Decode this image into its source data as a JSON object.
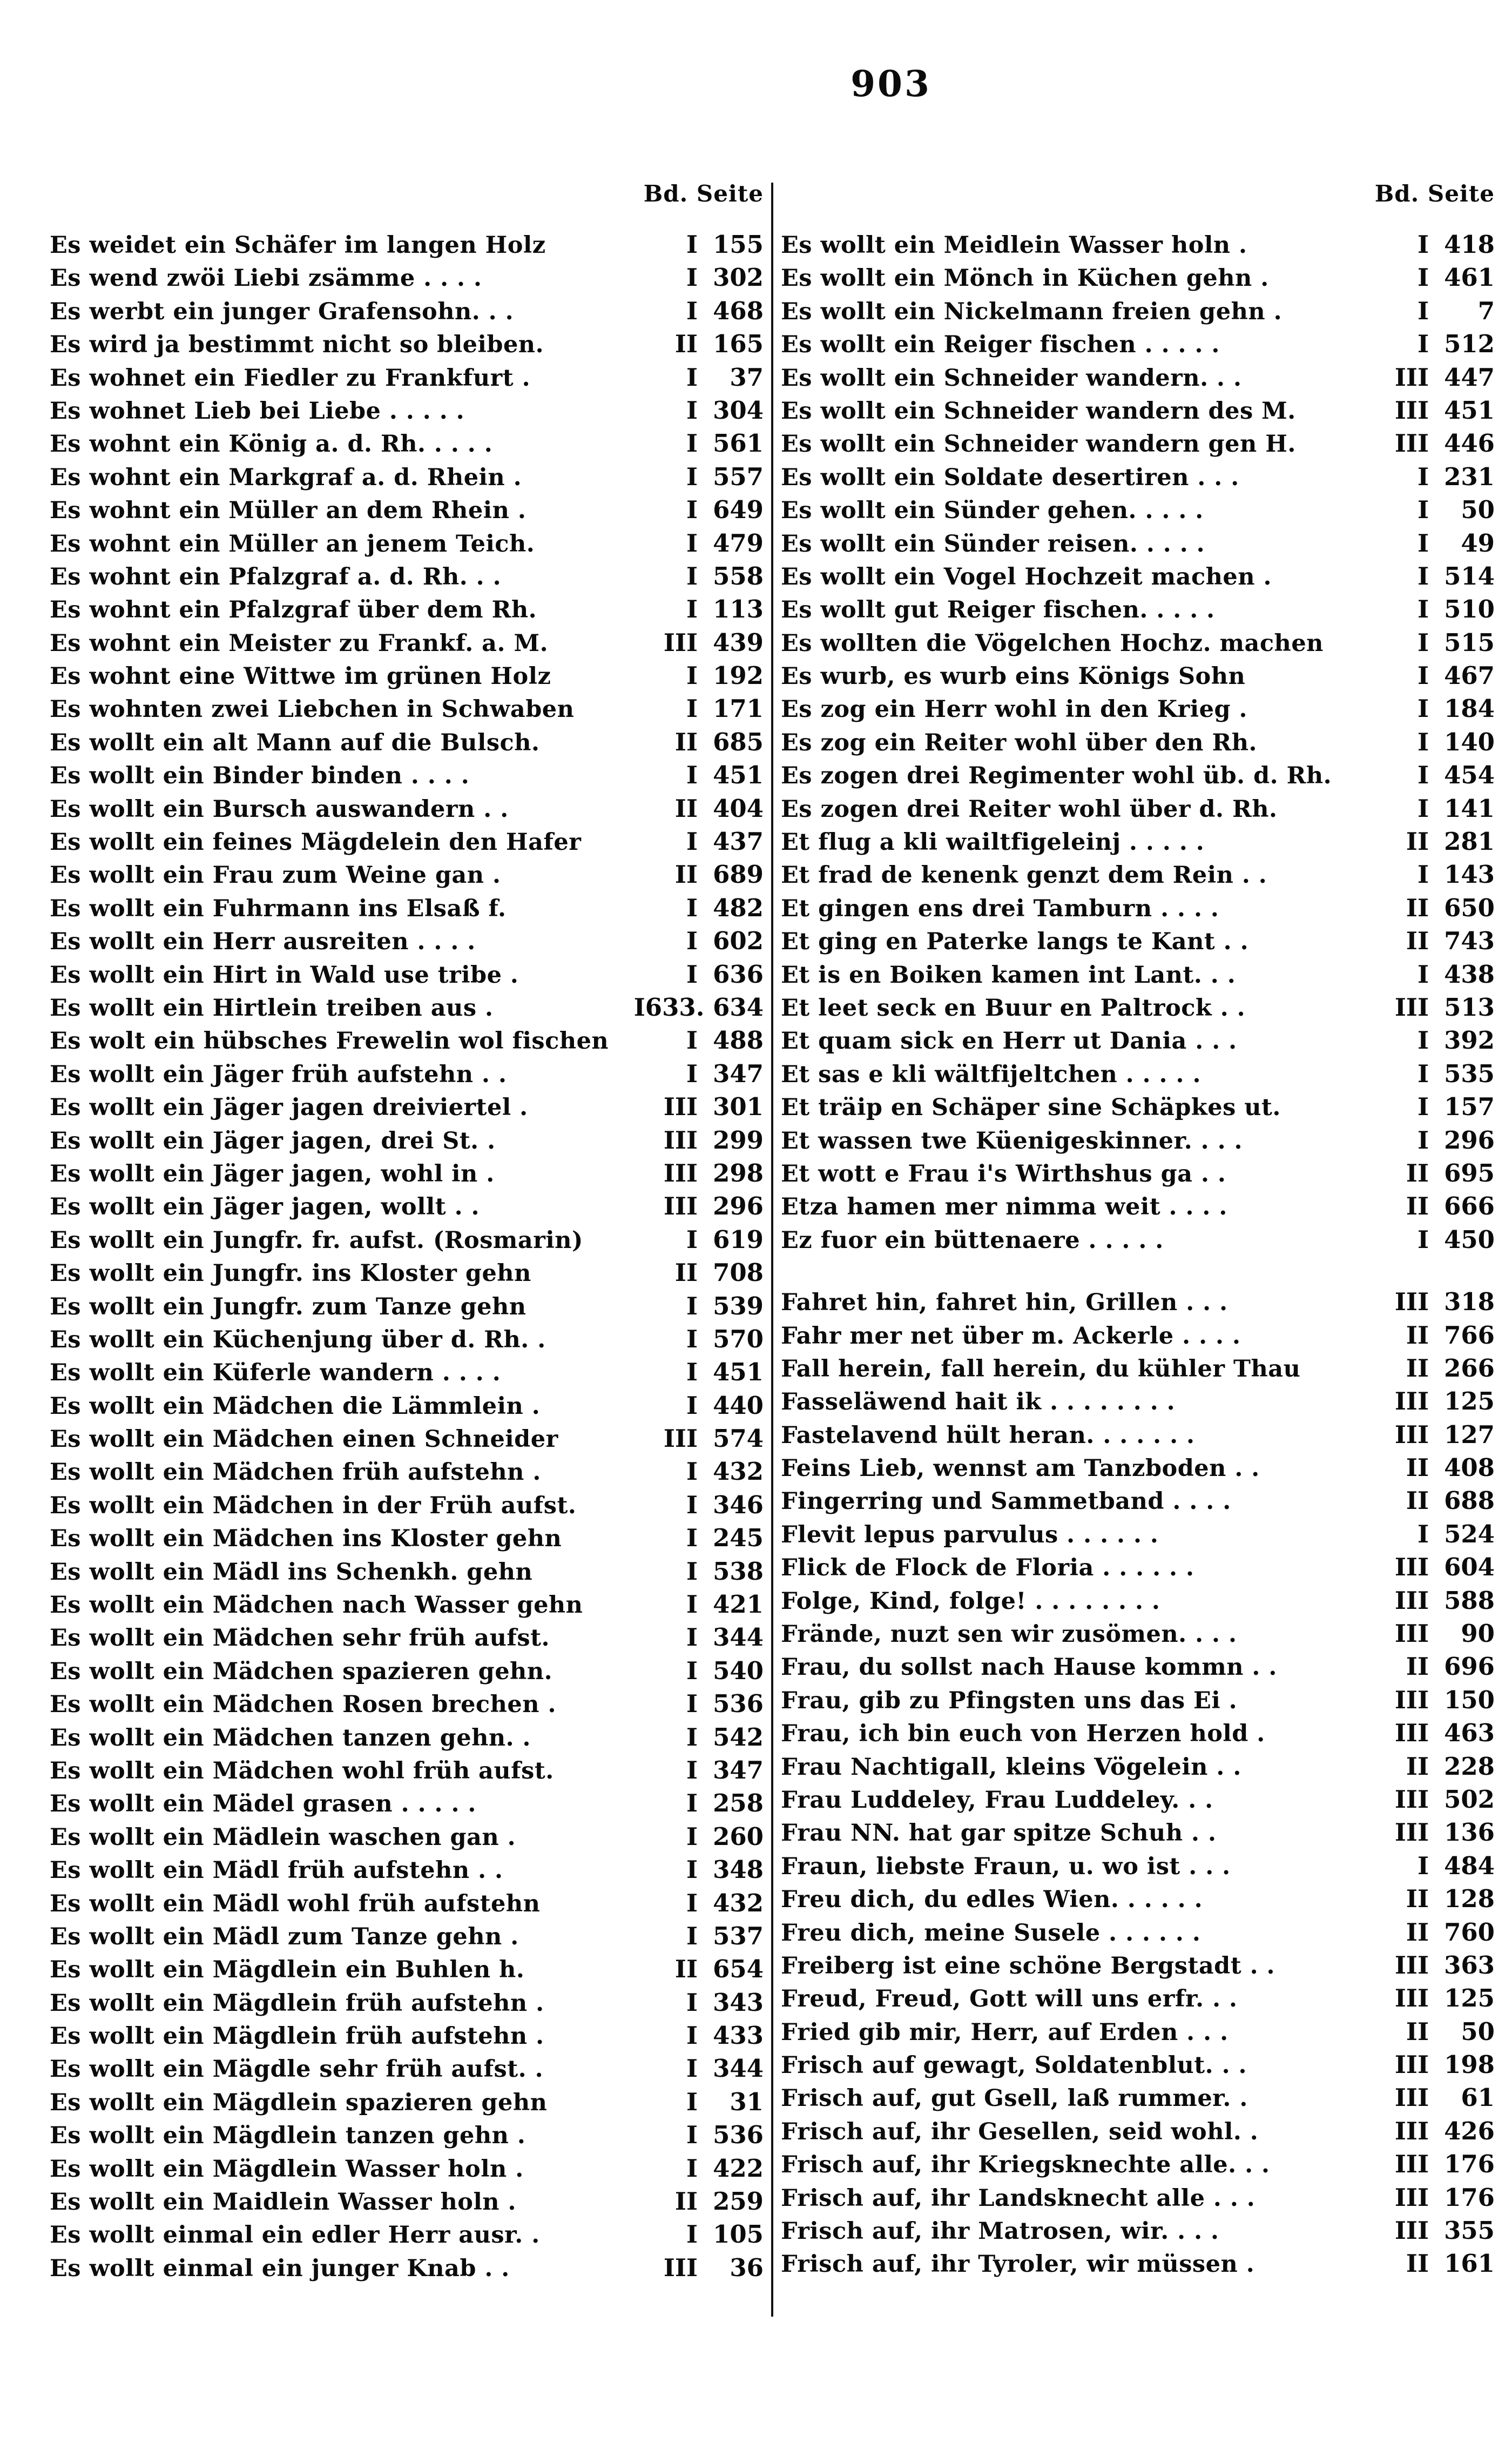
{
  "page_number": "903",
  "columns": {
    "left": {
      "header": "Bd. Seite",
      "entries": [
        {
          "t": "Es weidet ein Schäfer im langen Holz",
          "v": "I",
          "p": "155"
        },
        {
          "t": "Es wend zwöi Liebi zsämme . . . .",
          "v": "I",
          "p": "302"
        },
        {
          "t": "Es werbt ein junger Grafensohn. . .",
          "v": "I",
          "p": "468"
        },
        {
          "t": "Es wird ja bestimmt nicht so bleiben.",
          "v": "II",
          "p": "165"
        },
        {
          "t": "Es wohnet ein Fiedler zu Frankfurt .",
          "v": "I",
          "p": "37"
        },
        {
          "t": "Es wohnet Lieb bei Liebe . . . . .",
          "v": "I",
          "p": "304"
        },
        {
          "t": "Es wohnt ein König a. d. Rh. . . . .",
          "v": "I",
          "p": "561"
        },
        {
          "t": "Es wohnt ein Markgraf a. d. Rhein .",
          "v": "I",
          "p": "557"
        },
        {
          "t": "Es wohnt ein Müller an dem Rhein .",
          "v": "I",
          "p": "649"
        },
        {
          "t": "Es wohnt ein Müller an jenem Teich.",
          "v": "I",
          "p": "479"
        },
        {
          "t": "Es wohnt ein Pfalzgraf a. d. Rh. . .",
          "v": "I",
          "p": "558"
        },
        {
          "t": "Es wohnt ein Pfalzgraf über dem Rh.",
          "v": "I",
          "p": "113"
        },
        {
          "t": "Es wohnt ein Meister zu Frankf. a. M.",
          "v": "III",
          "p": "439"
        },
        {
          "t": "Es wohnt eine Wittwe im grünen Holz",
          "v": "I",
          "p": "192"
        },
        {
          "t": "Es wohnten zwei Liebchen in Schwaben",
          "v": "I",
          "p": "171"
        },
        {
          "t": "Es wollt ein alt Mann auf die Bulsch.",
          "v": "II",
          "p": "685"
        },
        {
          "t": "Es wollt ein Binder binden . . . .",
          "v": "I",
          "p": "451"
        },
        {
          "t": "Es wollt ein Bursch auswandern . .",
          "v": "II",
          "p": "404"
        },
        {
          "t": "Es wollt ein feines Mägdelein den Hafer",
          "v": "I",
          "p": "437"
        },
        {
          "t": "Es wollt ein Frau zum Weine gan .",
          "v": "II",
          "p": "689"
        },
        {
          "t": "Es wollt ein Fuhrmann ins Elsaß f.",
          "v": "I",
          "p": "482"
        },
        {
          "t": "Es wollt ein Herr ausreiten . . . .",
          "v": "I",
          "p": "602"
        },
        {
          "t": "Es wollt ein Hirt in Wald use tribe .",
          "v": "I",
          "p": "636"
        },
        {
          "t": "Es wollt ein Hirtlein treiben aus .",
          "v": "I",
          "p": "633. 634"
        },
        {
          "t": "Es wolt ein hübsches Frewelin wol fischen",
          "v": "I",
          "p": "488"
        },
        {
          "t": "Es wollt ein Jäger früh aufstehn . .",
          "v": "I",
          "p": "347"
        },
        {
          "t": "Es wollt ein Jäger jagen dreiviertel .",
          "v": "III",
          "p": "301"
        },
        {
          "t": "Es wollt ein Jäger jagen, drei St. .",
          "v": "III",
          "p": "299"
        },
        {
          "t": "Es wollt ein Jäger jagen, wohl in .",
          "v": "III",
          "p": "298"
        },
        {
          "t": "Es wollt ein Jäger jagen, wollt . .",
          "v": "III",
          "p": "296"
        },
        {
          "t": "Es wollt ein Jungfr. fr. aufst. (Rosmarin)",
          "v": "I",
          "p": "619"
        },
        {
          "t": "Es wollt ein Jungfr. ins Kloster gehn",
          "v": "II",
          "p": "708"
        },
        {
          "t": "Es wollt ein Jungfr. zum Tanze gehn",
          "v": "I",
          "p": "539"
        },
        {
          "t": "Es wollt ein Küchenjung über d. Rh. .",
          "v": "I",
          "p": "570"
        },
        {
          "t": "Es wollt ein Küferle wandern . . . .",
          "v": "I",
          "p": "451"
        },
        {
          "t": "Es wollt ein Mädchen die Lämmlein .",
          "v": "I",
          "p": "440"
        },
        {
          "t": "Es wollt ein Mädchen einen Schneider",
          "v": "III",
          "p": "574"
        },
        {
          "t": "Es wollt ein Mädchen früh aufstehn .",
          "v": "I",
          "p": "432"
        },
        {
          "t": "Es wollt ein Mädchen in der Früh aufst.",
          "v": "I",
          "p": "346"
        },
        {
          "t": "Es wollt ein Mädchen ins Kloster gehn",
          "v": "I",
          "p": "245"
        },
        {
          "t": "Es wollt ein Mädl ins Schenkh. gehn",
          "v": "I",
          "p": "538"
        },
        {
          "t": "Es wollt ein Mädchen nach Wasser gehn",
          "v": "I",
          "p": "421"
        },
        {
          "t": "Es wollt ein Mädchen sehr früh aufst.",
          "v": "I",
          "p": "344"
        },
        {
          "t": "Es wollt ein Mädchen spazieren gehn.",
          "v": "I",
          "p": "540"
        },
        {
          "t": "Es wollt ein Mädchen Rosen brechen .",
          "v": "I",
          "p": "536"
        },
        {
          "t": "Es wollt ein Mädchen tanzen gehn. .",
          "v": "I",
          "p": "542"
        },
        {
          "t": "Es wollt ein Mädchen wohl früh aufst.",
          "v": "I",
          "p": "347"
        },
        {
          "t": "Es wollt ein Mädel grasen . . . . .",
          "v": "I",
          "p": "258"
        },
        {
          "t": "Es wollt ein Mädlein waschen gan .",
          "v": "I",
          "p": "260"
        },
        {
          "t": "Es wollt ein Mädl früh aufstehn . .",
          "v": "I",
          "p": "348"
        },
        {
          "t": "Es wollt ein Mädl wohl früh aufstehn",
          "v": "I",
          "p": "432"
        },
        {
          "t": "Es wollt ein Mädl zum Tanze gehn .",
          "v": "I",
          "p": "537"
        },
        {
          "t": "Es wollt ein Mägdlein ein Buhlen h.",
          "v": "II",
          "p": "654"
        },
        {
          "t": "Es wollt ein Mägdlein früh aufstehn .",
          "v": "I",
          "p": "343"
        },
        {
          "t": "Es wollt ein Mägdlein früh aufstehn .",
          "v": "I",
          "p": "433"
        },
        {
          "t": "Es wollt ein Mägdle sehr früh aufst. .",
          "v": "I",
          "p": "344"
        },
        {
          "t": "Es wollt ein Mägdlein spazieren gehn",
          "v": "I",
          "p": "31"
        },
        {
          "t": "Es wollt ein Mägdlein tanzen gehn .",
          "v": "I",
          "p": "536"
        },
        {
          "t": "Es wollt ein Mägdlein Wasser holn .",
          "v": "I",
          "p": "422"
        },
        {
          "t": "Es wollt ein Maidlein Wasser holn .",
          "v": "II",
          "p": "259"
        },
        {
          "t": "Es wollt einmal ein edler Herr ausr. .",
          "v": "I",
          "p": "105"
        },
        {
          "t": "Es wollt einmal ein junger Knab . .",
          "v": "III",
          "p": "36"
        }
      ]
    },
    "right": {
      "header": "Bd. Seite",
      "entries": [
        {
          "t": "Es wollt ein Meidlein Wasser holn .",
          "v": "I",
          "p": "418"
        },
        {
          "t": "Es wollt ein Mönch in Küchen gehn .",
          "v": "I",
          "p": "461"
        },
        {
          "t": "Es wollt ein Nickelmann freien gehn .",
          "v": "I",
          "p": "7"
        },
        {
          "t": "Es wollt ein Reiger fischen . . . . .",
          "v": "I",
          "p": "512"
        },
        {
          "t": "Es wollt ein Schneider wandern. . .",
          "v": "III",
          "p": "447"
        },
        {
          "t": "Es wollt ein Schneider wandern des M.",
          "v": "III",
          "p": "451"
        },
        {
          "t": "Es wollt ein Schneider wandern gen H.",
          "v": "III",
          "p": "446"
        },
        {
          "t": "Es wollt ein Soldate desertiren . . .",
          "v": "I",
          "p": "231"
        },
        {
          "t": "Es wollt ein Sünder gehen. . . . .",
          "v": "I",
          "p": "50"
        },
        {
          "t": "Es wollt ein Sünder reisen. . . . .",
          "v": "I",
          "p": "49"
        },
        {
          "t": "Es wollt ein Vogel Hochzeit machen .",
          "v": "I",
          "p": "514"
        },
        {
          "t": "Es wollt gut Reiger fischen. . . . .",
          "v": "I",
          "p": "510"
        },
        {
          "t": "Es wollten die Vögelchen Hochz. machen",
          "v": "I",
          "p": "515"
        },
        {
          "t": "Es wurb, es wurb eins Königs Sohn",
          "v": "I",
          "p": "467"
        },
        {
          "t": "Es zog ein Herr wohl in den Krieg .",
          "v": "I",
          "p": "184"
        },
        {
          "t": "Es zog ein Reiter wohl über den Rh.",
          "v": "I",
          "p": "140"
        },
        {
          "t": "Es zogen drei Regimenter wohl üb. d. Rh.",
          "v": "I",
          "p": "454"
        },
        {
          "t": "Es zogen drei Reiter wohl über d. Rh.",
          "v": "I",
          "p": "141"
        },
        {
          "t": "Et flug a kli wailtfigeleinj . . . . .",
          "v": "II",
          "p": "281"
        },
        {
          "t": "Et frad de kenenk genzt dem Rein . .",
          "v": "I",
          "p": "143"
        },
        {
          "t": "Et gingen ens drei Tamburn . . . .",
          "v": "II",
          "p": "650"
        },
        {
          "t": "Et ging en Paterke langs te Kant . .",
          "v": "II",
          "p": "743"
        },
        {
          "t": "Et is en Boiken kamen int Lant. . .",
          "v": "I",
          "p": "438"
        },
        {
          "t": "Et leet seck en Buur en Paltrock . .",
          "v": "III",
          "p": "513"
        },
        {
          "t": "Et quam sick en Herr ut Dania . . .",
          "v": "I",
          "p": "392"
        },
        {
          "t": "Et sas e kli wältfijeltchen . . . . .",
          "v": "I",
          "p": "535"
        },
        {
          "t": "Et träip en Schäper sine Schäpkes ut.",
          "v": "I",
          "p": "157"
        },
        {
          "t": "Et wassen twe Küenigeskinner. . . .",
          "v": "I",
          "p": "296"
        },
        {
          "t": "Et wott e Frau i's Wirthshus ga . .",
          "v": "II",
          "p": "695"
        },
        {
          "t": "Etza hamen mer nimma weit . . . .",
          "v": "II",
          "p": "666"
        },
        {
          "t": "Ez fuor ein büttenaere . . . . .",
          "v": "I",
          "p": "450"
        },
        {
          "t": "Fahret hin, fahret hin, Grillen . . .",
          "v": "III",
          "p": "318",
          "gap": true
        },
        {
          "t": "Fahr mer net über m. Ackerle . . . .",
          "v": "II",
          "p": "766"
        },
        {
          "t": "Fall herein, fall herein, du kühler Thau",
          "v": "II",
          "p": "266"
        },
        {
          "t": "Fasseläwend hait ik . . . . . . . .",
          "v": "III",
          "p": "125"
        },
        {
          "t": "Fastelavend hült heran. . . . . . .",
          "v": "III",
          "p": "127"
        },
        {
          "t": "Feins Lieb, wennst am Tanzboden . .",
          "v": "II",
          "p": "408"
        },
        {
          "t": "Fingerring und Sammetband . . . .",
          "v": "II",
          "p": "688"
        },
        {
          "t": "Flevit lepus parvulus . . . . . .",
          "v": "I",
          "p": "524"
        },
        {
          "t": "Flick de Flock de Floria . . . . . .",
          "v": "III",
          "p": "604"
        },
        {
          "t": "Folge, Kind, folge! . . . . . . . .",
          "v": "III",
          "p": "588"
        },
        {
          "t": "Frände, nuzt sen wir zusömen. . . .",
          "v": "III",
          "p": "90"
        },
        {
          "t": "Frau, du sollst nach Hause kommn . .",
          "v": "II",
          "p": "696"
        },
        {
          "t": "Frau, gib zu Pfingsten uns das Ei .",
          "v": "III",
          "p": "150"
        },
        {
          "t": "Frau, ich bin euch von Herzen hold .",
          "v": "III",
          "p": "463"
        },
        {
          "t": "Frau Nachtigall, kleins Vögelein . .",
          "v": "II",
          "p": "228"
        },
        {
          "t": "Frau Luddeley, Frau Luddeley. . .",
          "v": "III",
          "p": "502"
        },
        {
          "t": "Frau NN. hat gar spitze Schuh . .",
          "v": "III",
          "p": "136"
        },
        {
          "t": "Fraun, liebste Fraun, u. wo ist . . .",
          "v": "I",
          "p": "484"
        },
        {
          "t": "Freu dich, du edles Wien. . . . . .",
          "v": "II",
          "p": "128"
        },
        {
          "t": "Freu dich, meine Susele . . . . . .",
          "v": "II",
          "p": "760"
        },
        {
          "t": "Freiberg ist eine schöne Bergstadt . .",
          "v": "III",
          "p": "363"
        },
        {
          "t": "Freud, Freud, Gott will uns erfr. . .",
          "v": "III",
          "p": "125"
        },
        {
          "t": "Fried gib mir, Herr, auf Erden . . .",
          "v": "II",
          "p": "50"
        },
        {
          "t": "Frisch auf gewagt, Soldatenblut. . .",
          "v": "III",
          "p": "198"
        },
        {
          "t": "Frisch auf, gut Gsell, laß rummer. .",
          "v": "III",
          "p": "61"
        },
        {
          "t": "Frisch auf, ihr Gesellen, seid wohl. .",
          "v": "III",
          "p": "426"
        },
        {
          "t": "Frisch auf, ihr Kriegsknechte alle. . .",
          "v": "III",
          "p": "176"
        },
        {
          "t": "Frisch auf, ihr Landsknecht alle . . .",
          "v": "III",
          "p": "176"
        },
        {
          "t": "Frisch auf, ihr Matrosen, wir. . . .",
          "v": "III",
          "p": "355"
        },
        {
          "t": "Frisch auf, ihr Tyroler, wir müssen .",
          "v": "II",
          "p": "161"
        }
      ]
    }
  }
}
